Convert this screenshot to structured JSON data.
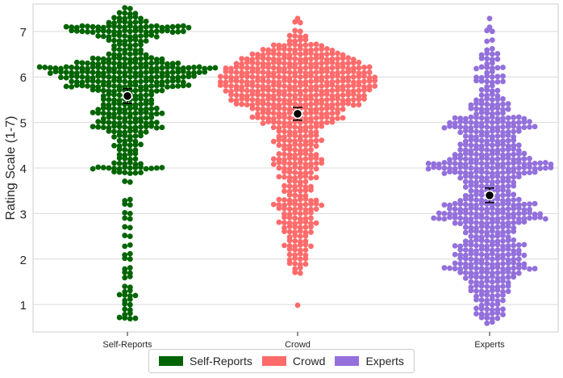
{
  "chart_data": {
    "type": "scatter",
    "subtype": "swarm",
    "title": "",
    "xlabel": "",
    "ylabel": "Rating Scale (1-7)",
    "categories": [
      "Self-Reports",
      "Crowd",
      "Experts"
    ],
    "ylim": [
      0.4,
      7.6
    ],
    "yticks": [
      1,
      2,
      3,
      4,
      5,
      6,
      7
    ],
    "grid": true,
    "legend": "bottom-center",
    "series": [
      {
        "name": "Self-Reports",
        "color": "#006400",
        "mean": 5.58,
        "ci": [
          5.42,
          5.74
        ],
        "bins": [
          [
            7.5,
            2
          ],
          [
            7.4,
            4
          ],
          [
            7.3,
            6
          ],
          [
            7.2,
            8
          ],
          [
            7.1,
            24
          ],
          [
            7.0,
            22
          ],
          [
            6.9,
            12
          ],
          [
            6.8,
            8
          ],
          [
            6.7,
            6
          ],
          [
            6.6,
            6
          ],
          [
            6.5,
            8
          ],
          [
            6.4,
            14
          ],
          [
            6.3,
            20
          ],
          [
            6.2,
            34
          ],
          [
            6.1,
            30
          ],
          [
            6.0,
            26
          ],
          [
            5.9,
            22
          ],
          [
            5.8,
            24
          ],
          [
            5.7,
            14
          ],
          [
            5.6,
            10
          ],
          [
            5.5,
            10
          ],
          [
            5.4,
            10
          ],
          [
            5.3,
            12
          ],
          [
            5.2,
            14
          ],
          [
            5.1,
            10
          ],
          [
            5.0,
            12
          ],
          [
            4.9,
            14
          ],
          [
            4.8,
            8
          ],
          [
            4.7,
            6
          ],
          [
            4.6,
            4
          ],
          [
            4.5,
            6
          ],
          [
            4.4,
            4
          ],
          [
            4.3,
            4
          ],
          [
            4.2,
            4
          ],
          [
            4.1,
            6
          ],
          [
            4.0,
            14
          ],
          [
            3.9,
            6
          ],
          [
            3.7,
            2
          ],
          [
            3.3,
            2
          ],
          [
            3.2,
            2
          ],
          [
            3.0,
            2
          ],
          [
            2.9,
            2
          ],
          [
            2.7,
            2
          ],
          [
            2.5,
            2
          ],
          [
            2.3,
            2
          ],
          [
            2.1,
            2
          ],
          [
            2.0,
            2
          ],
          [
            1.8,
            2
          ],
          [
            1.7,
            2
          ],
          [
            1.6,
            2
          ],
          [
            1.4,
            2
          ],
          [
            1.3,
            2
          ],
          [
            1.2,
            4
          ],
          [
            1.1,
            2
          ],
          [
            1.0,
            2
          ],
          [
            0.9,
            2
          ],
          [
            0.8,
            2
          ],
          [
            0.7,
            4
          ]
        ]
      },
      {
        "name": "Crowd",
        "color": "#ff6b6b",
        "mean": 5.19,
        "ci": [
          5.05,
          5.33
        ],
        "bins": [
          [
            7.3,
            1
          ],
          [
            7.2,
            2
          ],
          [
            7.0,
            2
          ],
          [
            6.9,
            4
          ],
          [
            6.8,
            4
          ],
          [
            6.7,
            10
          ],
          [
            6.6,
            14
          ],
          [
            6.5,
            18
          ],
          [
            6.4,
            22
          ],
          [
            6.3,
            24
          ],
          [
            6.2,
            28
          ],
          [
            6.1,
            28
          ],
          [
            6.0,
            30
          ],
          [
            5.9,
            30
          ],
          [
            5.8,
            30
          ],
          [
            5.7,
            28
          ],
          [
            5.6,
            26
          ],
          [
            5.5,
            26
          ],
          [
            5.4,
            24
          ],
          [
            5.3,
            18
          ],
          [
            5.2,
            16
          ],
          [
            5.1,
            18
          ],
          [
            5.0,
            14
          ],
          [
            4.9,
            10
          ],
          [
            4.8,
            8
          ],
          [
            4.7,
            8
          ],
          [
            4.6,
            10
          ],
          [
            4.5,
            8
          ],
          [
            4.4,
            6
          ],
          [
            4.3,
            8
          ],
          [
            4.2,
            10
          ],
          [
            4.1,
            10
          ],
          [
            4.0,
            8
          ],
          [
            3.9,
            6
          ],
          [
            3.8,
            8
          ],
          [
            3.7,
            4
          ],
          [
            3.6,
            6
          ],
          [
            3.5,
            6
          ],
          [
            3.4,
            4
          ],
          [
            3.3,
            8
          ],
          [
            3.2,
            10
          ],
          [
            3.1,
            8
          ],
          [
            3.0,
            6
          ],
          [
            2.9,
            6
          ],
          [
            2.8,
            8
          ],
          [
            2.7,
            6
          ],
          [
            2.6,
            6
          ],
          [
            2.5,
            4
          ],
          [
            2.4,
            4
          ],
          [
            2.3,
            6
          ],
          [
            2.2,
            4
          ],
          [
            2.1,
            4
          ],
          [
            2.0,
            4
          ],
          [
            1.9,
            4
          ],
          [
            1.8,
            2
          ],
          [
            1.7,
            2
          ],
          [
            0.97,
            1
          ]
        ]
      },
      {
        "name": "Experts",
        "color": "#9370db",
        "mean": 3.4,
        "ci": [
          3.24,
          3.56
        ],
        "bins": [
          [
            7.3,
            1
          ],
          [
            7.1,
            1
          ],
          [
            7.0,
            2
          ],
          [
            6.8,
            2
          ],
          [
            6.6,
            2
          ],
          [
            6.5,
            4
          ],
          [
            6.4,
            4
          ],
          [
            6.3,
            2
          ],
          [
            6.2,
            6
          ],
          [
            6.1,
            2
          ],
          [
            6.0,
            6
          ],
          [
            5.9,
            6
          ],
          [
            5.8,
            2
          ],
          [
            5.7,
            4
          ],
          [
            5.6,
            4
          ],
          [
            5.5,
            6
          ],
          [
            5.4,
            8
          ],
          [
            5.3,
            8
          ],
          [
            5.2,
            6
          ],
          [
            5.1,
            14
          ],
          [
            5.0,
            16
          ],
          [
            4.9,
            18
          ],
          [
            4.8,
            12
          ],
          [
            4.7,
            10
          ],
          [
            4.6,
            10
          ],
          [
            4.5,
            12
          ],
          [
            4.4,
            12
          ],
          [
            4.3,
            14
          ],
          [
            4.2,
            16
          ],
          [
            4.1,
            24
          ],
          [
            4.0,
            24
          ],
          [
            3.9,
            18
          ],
          [
            3.8,
            12
          ],
          [
            3.7,
            10
          ],
          [
            3.6,
            10
          ],
          [
            3.5,
            8
          ],
          [
            3.4,
            10
          ],
          [
            3.3,
            12
          ],
          [
            3.2,
            18
          ],
          [
            3.1,
            16
          ],
          [
            3.0,
            20
          ],
          [
            2.9,
            22
          ],
          [
            2.8,
            14
          ],
          [
            2.7,
            10
          ],
          [
            2.6,
            10
          ],
          [
            2.5,
            8
          ],
          [
            2.4,
            10
          ],
          [
            2.3,
            14
          ],
          [
            2.2,
            12
          ],
          [
            2.1,
            14
          ],
          [
            2.0,
            12
          ],
          [
            1.9,
            14
          ],
          [
            1.8,
            18
          ],
          [
            1.7,
            12
          ],
          [
            1.6,
            10
          ],
          [
            1.5,
            8
          ],
          [
            1.4,
            8
          ],
          [
            1.3,
            8
          ],
          [
            1.2,
            6
          ],
          [
            1.1,
            6
          ],
          [
            1.0,
            4
          ],
          [
            0.9,
            6
          ],
          [
            0.8,
            6
          ],
          [
            0.7,
            4
          ],
          [
            0.6,
            2
          ]
        ]
      }
    ]
  }
}
